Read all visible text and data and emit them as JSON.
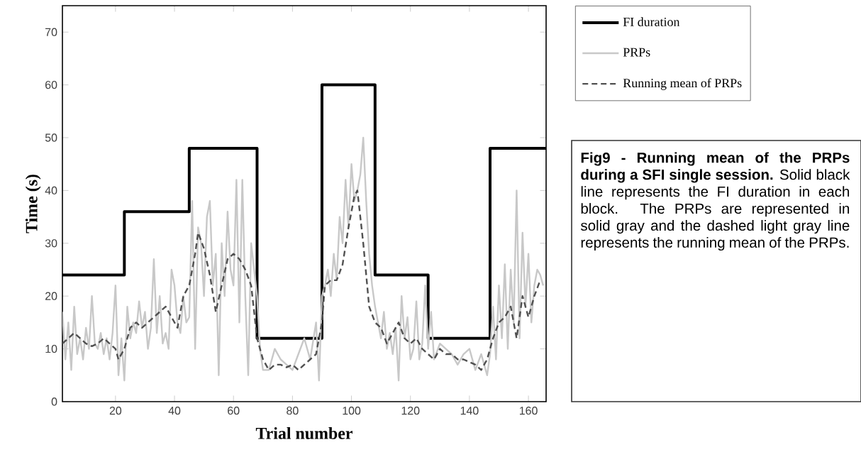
{
  "chart_data": {
    "type": "line",
    "xlabel": "Trial number",
    "ylabel": "Time (s)",
    "xlim": [
      2,
      166
    ],
    "ylim": [
      0,
      75
    ],
    "xticks": [
      20,
      40,
      60,
      80,
      100,
      120,
      140,
      160
    ],
    "yticks": [
      0,
      10,
      20,
      30,
      40,
      50,
      60,
      70
    ],
    "legend": "top right",
    "grid": false,
    "annotations": [
      "**Fig9 - Running mean of the PRPs during a SFI single session.** Solid black line represents the FI duration in each block. The PRPs are represented in solid gray and the dashed light gray line represents the running mean of the PRPs."
    ],
    "series": [
      {
        "name": "FI duration",
        "type": "step",
        "color": "#000000",
        "line_style": "solid",
        "x": [
          2,
          23,
          45,
          68,
          90,
          108,
          126,
          147,
          166
        ],
        "values": [
          24,
          36,
          48,
          12,
          60,
          24,
          12,
          48,
          48
        ]
      },
      {
        "name": "PRPs",
        "color": "#c8c8c8",
        "line_style": "solid",
        "x": [
          2,
          3,
          4,
          5,
          6,
          7,
          8,
          9,
          10,
          11,
          12,
          13,
          14,
          15,
          16,
          17,
          18,
          19,
          20,
          21,
          22,
          23,
          24,
          25,
          26,
          27,
          28,
          29,
          30,
          31,
          32,
          33,
          34,
          35,
          36,
          37,
          38,
          39,
          40,
          41,
          42,
          43,
          44,
          45,
          46,
          47,
          48,
          49,
          50,
          51,
          52,
          53,
          54,
          55,
          56,
          57,
          58,
          59,
          60,
          61,
          62,
          63,
          64,
          65,
          66,
          67,
          68,
          69,
          70,
          72,
          74,
          76,
          78,
          80,
          82,
          84,
          86,
          88,
          89,
          90,
          91,
          92,
          93,
          94,
          95,
          96,
          97,
          98,
          99,
          100,
          101,
          102,
          103,
          104,
          105,
          106,
          107,
          108,
          109,
          110,
          111,
          112,
          113,
          114,
          115,
          116,
          117,
          118,
          119,
          120,
          121,
          122,
          123,
          124,
          125,
          126,
          127,
          128,
          130,
          132,
          134,
          136,
          138,
          140,
          142,
          144,
          146,
          147,
          148,
          149,
          150,
          151,
          152,
          153,
          154,
          155,
          156,
          157,
          158,
          159,
          160,
          161,
          162,
          163,
          164,
          165
        ],
        "values": [
          17,
          8,
          15,
          6,
          18,
          9,
          12,
          8,
          14,
          10,
          20,
          11,
          10,
          13,
          9,
          12,
          8,
          13,
          22,
          5,
          12,
          4,
          18,
          12,
          15,
          13,
          19,
          14,
          17,
          10,
          14,
          27,
          13,
          20,
          11,
          13,
          10,
          25,
          22,
          15,
          13,
          20,
          15,
          16,
          38,
          10,
          33,
          30,
          20,
          35,
          38,
          22,
          28,
          5,
          30,
          20,
          36,
          25,
          22,
          42,
          15,
          42,
          20,
          5,
          30,
          25,
          20,
          10,
          6,
          6,
          10,
          8,
          7,
          6,
          9,
          12,
          8,
          15,
          4,
          20,
          22,
          25,
          20,
          28,
          23,
          35,
          30,
          42,
          33,
          45,
          38,
          40,
          43,
          50,
          38,
          28,
          22,
          18,
          15,
          12,
          17,
          10,
          13,
          9,
          14,
          4,
          20,
          12,
          16,
          8,
          10,
          19,
          8,
          11,
          22,
          10,
          17,
          8,
          11,
          10,
          9,
          7,
          9,
          10,
          6,
          9,
          5,
          9,
          18,
          8,
          22,
          12,
          26,
          10,
          25,
          15,
          40,
          12,
          32,
          18,
          28,
          15,
          22,
          25,
          24,
          22
        ]
      },
      {
        "name": "Running mean of PRPs",
        "color": "#505050",
        "line_style": "dashed",
        "x": [
          2,
          4,
          6,
          8,
          10,
          12,
          14,
          16,
          18,
          20,
          21,
          23,
          25,
          27,
          29,
          31,
          33,
          35,
          37,
          39,
          41,
          43,
          45,
          47,
          48,
          50,
          52,
          54,
          56,
          58,
          60,
          62,
          64,
          66,
          68,
          70,
          72,
          74,
          76,
          78,
          80,
          82,
          84,
          86,
          88,
          90,
          91,
          93,
          95,
          97,
          99,
          101,
          102,
          104,
          106,
          108,
          110,
          112,
          114,
          116,
          118,
          120,
          122,
          124,
          126,
          128,
          130,
          132,
          134,
          136,
          138,
          140,
          142,
          144,
          146,
          148,
          150,
          152,
          154,
          156,
          158,
          160,
          162,
          164
        ],
        "values": [
          11,
          12,
          13,
          12,
          11,
          10.5,
          11,
          12,
          11,
          10,
          8,
          10,
          14,
          15,
          14,
          15,
          16,
          17,
          18,
          16,
          14,
          20,
          22,
          28,
          32,
          29,
          24,
          17,
          22,
          27,
          28,
          27,
          25,
          22,
          12,
          8,
          6,
          7,
          7,
          6.5,
          7,
          6,
          7,
          8,
          9,
          15,
          22,
          23,
          23,
          26,
          33,
          39,
          40,
          30,
          18,
          15,
          14,
          11,
          13,
          15,
          12,
          11,
          12,
          10,
          9,
          8,
          10,
          9,
          9,
          8,
          8,
          7.5,
          7,
          6,
          8,
          12,
          15,
          16,
          18,
          12,
          20,
          16,
          20,
          23
        ]
      }
    ]
  }
}
